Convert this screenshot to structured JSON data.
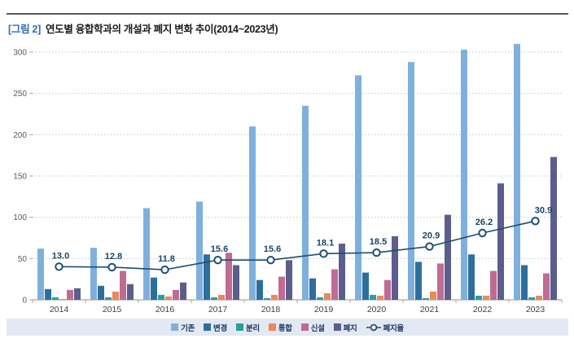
{
  "figure_header": {
    "tag": "[그림 2]",
    "title": "연도별 융합학과의 개설과 폐지 변화 추이(2014~2023년)"
  },
  "chart_data": {
    "type": "bar+line combo",
    "title": "연도별 융합학과의 개설과 폐지 변화 추이(2014~2023년)",
    "categories": [
      "2014",
      "2015",
      "2016",
      "2017",
      "2018",
      "2019",
      "2020",
      "2021",
      "2022",
      "2023"
    ],
    "series": [
      {
        "key": "existing",
        "name": "기존",
        "color": "#7fb0dd",
        "values": [
          62,
          63,
          111,
          119,
          210,
          235,
          272,
          288,
          303,
          310
        ]
      },
      {
        "key": "changed",
        "name": "변경",
        "color": "#2d6f9c",
        "values": [
          13,
          17,
          27,
          55,
          24,
          26,
          33,
          46,
          55,
          42
        ]
      },
      {
        "key": "separated",
        "name": "분리",
        "color": "#2b9e9b",
        "values": [
          3,
          3,
          6,
          3,
          2,
          3,
          6,
          2,
          5,
          3
        ]
      },
      {
        "key": "merged",
        "name": "통합",
        "color": "#e88a5a",
        "values": [
          1,
          10,
          4,
          6,
          6,
          8,
          5,
          10,
          5,
          5
        ]
      },
      {
        "key": "new",
        "name": "신설",
        "color": "#bf6b94",
        "values": [
          12,
          35,
          12,
          57,
          28,
          37,
          24,
          44,
          35,
          32
        ]
      },
      {
        "key": "abolished",
        "name": "폐지",
        "color": "#5b5e8c",
        "values": [
          14,
          19,
          21,
          42,
          48,
          68,
          77,
          103,
          141,
          173
        ]
      }
    ],
    "line_series": {
      "key": "abolition-rate",
      "name": "폐지율",
      "color": "#1d4f70",
      "values": [
        13.0,
        12.8,
        11.8,
        15.6,
        15.6,
        18.1,
        18.5,
        20.9,
        26.2,
        30.9
      ],
      "labels": [
        "13.0",
        "12.8",
        "11.8",
        "15.6",
        "15.6",
        "18.1",
        "18.5",
        "20.9",
        "26.2",
        "30.9"
      ],
      "plotted_on_secondary_axis": true
    },
    "y_axis": {
      "ticks": [
        0,
        50,
        100,
        150,
        200,
        250,
        300
      ],
      "max": 300,
      "label": ""
    },
    "xlabel": "",
    "ylabel": "",
    "grid": "dotted horizontal gridlines",
    "legend_position": "bottom"
  },
  "style_colors": {
    "grid": "#c3c3c3",
    "axis": "#a6a6a6",
    "tick_label": "#595959",
    "year_label": "#404040",
    "rate_label": "#17456b",
    "legend_bg": "#e2e9f2",
    "legend_text": "#1f3864",
    "header_tag": "#2e6db4",
    "top_rule": "#595959"
  }
}
